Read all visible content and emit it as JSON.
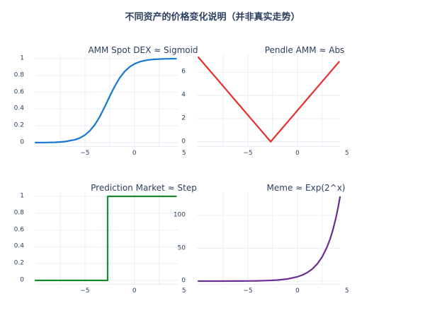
{
  "page": {
    "title": "不同资产的价格变化说明（并非真实走势）",
    "background": "#ffffff",
    "text_color": "#2a3f5f",
    "grid_color": "#e8edf4"
  },
  "chart_data": [
    {
      "id": "amm-spot-dex-sigmoid",
      "type": "line",
      "title": "AMM Spot DEX ≈ Sigmoid",
      "color": "#1676d0",
      "line_width": 2.2,
      "legend": false,
      "grid": true,
      "x_range": [
        -10,
        4.45
      ],
      "y_range": [
        -0.05,
        1.05
      ],
      "x_grid": [
        -7.5,
        -5,
        -2.5,
        0,
        2.5,
        5
      ],
      "x_ticks": {
        "values": [
          -5,
          0,
          5
        ],
        "labels": [
          "−5",
          "0",
          "5"
        ]
      },
      "y_ticks": {
        "values": [
          0,
          0.2,
          0.4,
          0.6,
          0.8,
          1
        ],
        "labels": [
          "0",
          "0.2",
          "0.4",
          "0.6",
          "0.8",
          "1"
        ]
      },
      "x": [
        -10,
        -9,
        -8,
        -7,
        -6,
        -5.5,
        -5,
        -4.5,
        -4,
        -3.5,
        -3,
        -2.5,
        -2,
        -1.5,
        -1,
        -0.5,
        0,
        0.5,
        1,
        1.5,
        2,
        2.5,
        3,
        3.5,
        4.2
      ],
      "y": [
        0.001,
        0.002,
        0.005,
        0.013,
        0.036,
        0.057,
        0.091,
        0.142,
        0.214,
        0.31,
        0.426,
        0.55,
        0.668,
        0.769,
        0.846,
        0.9,
        0.937,
        0.961,
        0.976,
        0.985,
        0.991,
        0.994,
        0.997,
        0.998,
        0.999
      ]
    },
    {
      "id": "pendle-amm-abs",
      "type": "line",
      "title": "Pendle AMM ≈ Abs",
      "color": "#e5302a",
      "line_width": 2.2,
      "legend": false,
      "grid": true,
      "x_range": [
        -10.15,
        4.3
      ],
      "y_range": [
        -0.45,
        7.55
      ],
      "x_grid": [
        -7.5,
        -5,
        -2.5,
        0,
        2.5,
        5
      ],
      "x_ticks": {
        "values": [
          -5,
          0,
          5
        ],
        "labels": [
          "−5",
          "0",
          "5"
        ]
      },
      "y_ticks": {
        "values": [
          0,
          2,
          4,
          6
        ],
        "labels": [
          "0",
          "2",
          "4",
          "6"
        ]
      },
      "x": [
        -10,
        -8,
        -6,
        -4,
        -2.7,
        -1,
        1,
        3,
        4.2
      ],
      "y": [
        7.3,
        5.3,
        3.3,
        1.3,
        0,
        1.7,
        3.7,
        5.7,
        6.9
      ]
    },
    {
      "id": "prediction-market-step",
      "type": "line",
      "title": "Prediction Market ≈ Step",
      "color": "#188a2c",
      "line_width": 2.2,
      "legend": false,
      "grid": true,
      "x_range": [
        -10,
        4.45
      ],
      "y_range": [
        -0.05,
        1.05
      ],
      "x_grid": [
        -7.5,
        -5,
        -2.5,
        0,
        2.5,
        5
      ],
      "x_ticks": {
        "values": [
          -5,
          0,
          5
        ],
        "labels": [
          "−5",
          "0",
          "5"
        ]
      },
      "y_ticks": {
        "values": [
          0,
          0.2,
          0.4,
          0.6,
          0.8,
          1
        ],
        "labels": [
          "0",
          "0.2",
          "0.4",
          "0.6",
          "0.8",
          "1"
        ]
      },
      "x": [
        -10,
        -2.7,
        -2.7,
        4.2
      ],
      "y": [
        0,
        0,
        1,
        1
      ]
    },
    {
      "id": "meme-exp",
      "type": "line",
      "title": "Meme ≈ Exp(2^x)",
      "color": "#6a2d91",
      "line_width": 2.2,
      "legend": false,
      "grid": true,
      "x_range": [
        -10.15,
        4.3
      ],
      "y_range": [
        -5.4,
        135.5
      ],
      "x_grid": [
        -7.5,
        -5,
        -2.5,
        0,
        2.5,
        5
      ],
      "x_ticks": {
        "values": [
          -5,
          0,
          5
        ],
        "labels": [
          "−5",
          "0",
          "5"
        ]
      },
      "y_ticks": {
        "values": [
          0,
          50,
          100
        ],
        "labels": [
          "0",
          "50",
          "100"
        ]
      },
      "x": [
        -10,
        -8,
        -6,
        -5,
        -4,
        -3,
        -2,
        -1,
        0,
        0.5,
        1,
        1.5,
        2,
        2.5,
        3,
        3.3,
        3.6,
        3.9,
        4.1,
        4.3
      ],
      "y": [
        0.006,
        0.025,
        0.101,
        0.203,
        0.406,
        0.812,
        1.62,
        3.25,
        6.5,
        9.19,
        13,
        18.4,
        26,
        36.8,
        52,
        64,
        78.8,
        97,
        111.4,
        128
      ]
    }
  ]
}
